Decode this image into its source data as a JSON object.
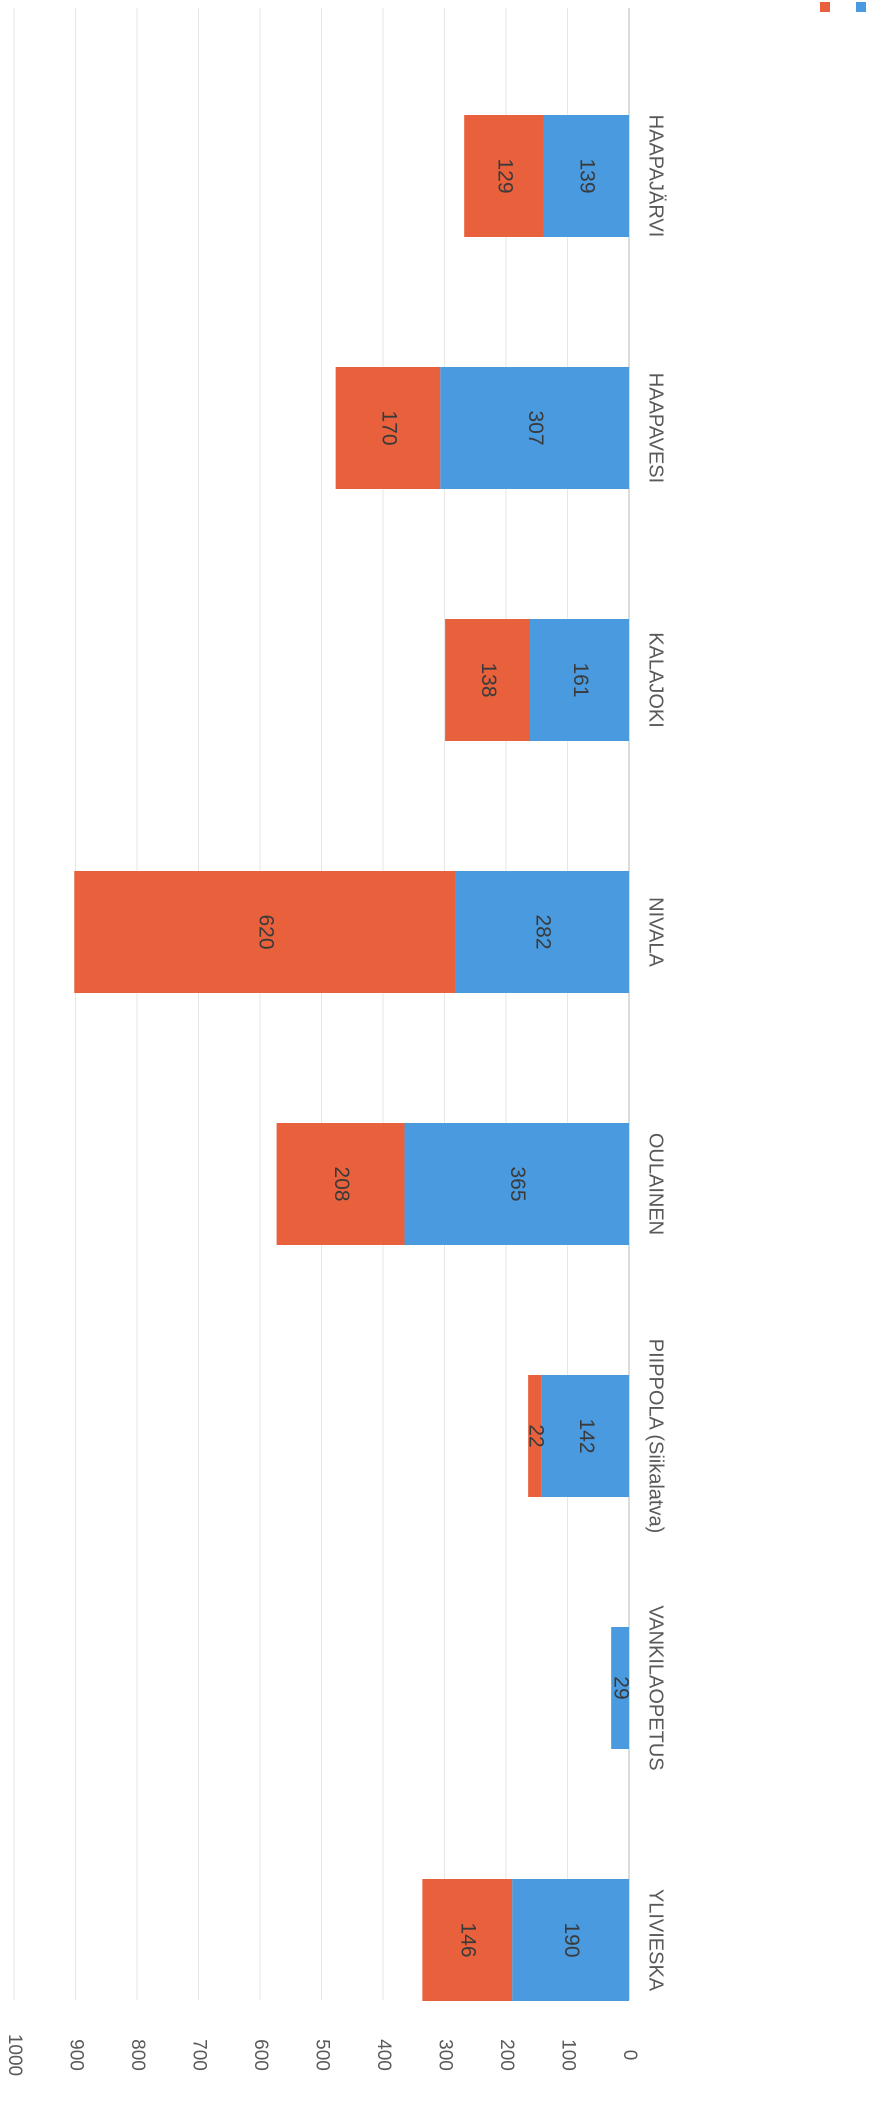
{
  "chart_data": {
    "type": "bar",
    "stacked": true,
    "orientation": "vertical",
    "rotation": "page rotated 90 degrees clockwise",
    "categories": [
      "HAAPAJÄRVI",
      "HAAPAVESI",
      "KALAJOKI",
      "NIVALA",
      "OULAINEN",
      "PIIPPOLA (Siikalatva)",
      "VANKILAOPETUS",
      "YLIVIESKA"
    ],
    "series": [
      {
        "color": "#4a9ae0",
        "values": [
          139,
          307,
          161,
          282,
          365,
          142,
          29,
          190
        ],
        "labels": [
          "139",
          "307",
          "161",
          "282",
          "365",
          "142",
          "29",
          "190"
        ]
      },
      {
        "color": "#e8613c",
        "values": [
          129,
          170,
          138,
          620,
          208,
          22,
          0,
          146
        ],
        "labels": [
          "129",
          "170",
          "138",
          "620",
          "208",
          "22",
          "",
          "146"
        ]
      }
    ],
    "ylim": [
      0,
      1000
    ],
    "yticks": [
      "0",
      "100",
      "200",
      "300",
      "400",
      "500",
      "600",
      "700",
      "800",
      "900",
      "1000"
    ],
    "grid": true,
    "legend": "top-right",
    "title": "",
    "xlabel": "",
    "ylabel": ""
  }
}
